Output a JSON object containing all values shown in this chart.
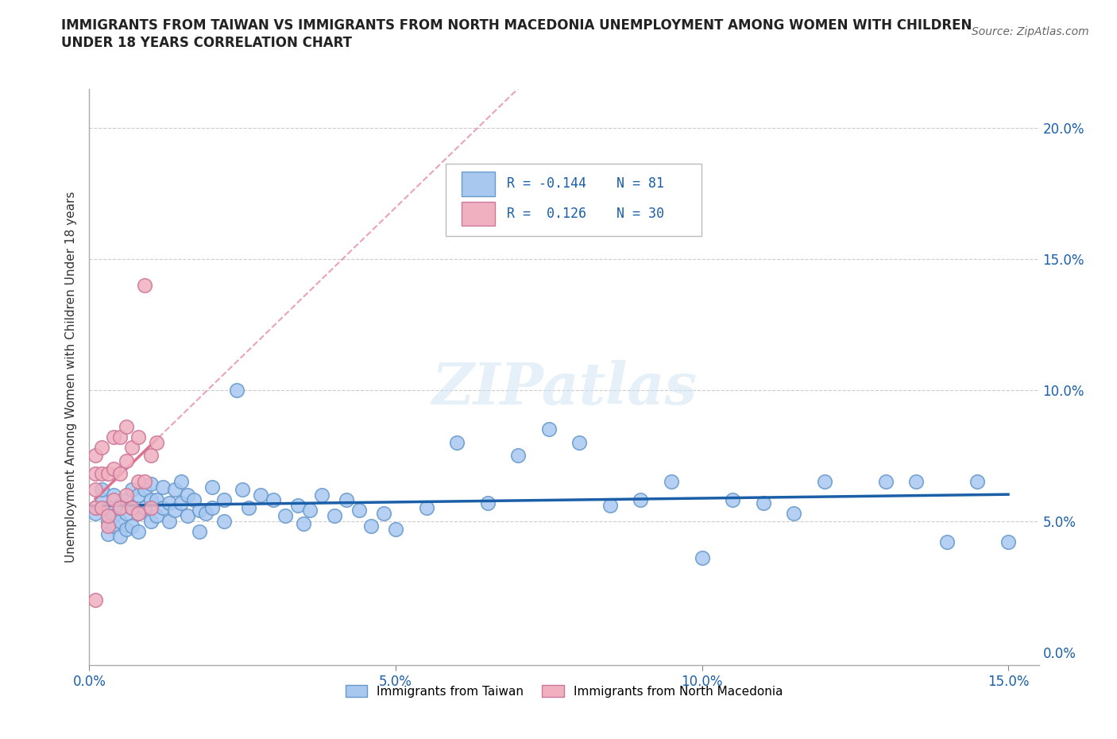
{
  "title_line1": "IMMIGRANTS FROM TAIWAN VS IMMIGRANTS FROM NORTH MACEDONIA UNEMPLOYMENT AMONG WOMEN WITH CHILDREN",
  "title_line2": "UNDER 18 YEARS CORRELATION CHART",
  "source": "Source: ZipAtlas.com",
  "ylabel": "Unemployment Among Women with Children Under 18 years",
  "xlim": [
    0.0,
    0.155
  ],
  "ylim": [
    -0.005,
    0.215
  ],
  "xticks": [
    0.0,
    0.05,
    0.1,
    0.15
  ],
  "xtick_labels": [
    "0.0%",
    "5.0%",
    "10.0%",
    "15.0%"
  ],
  "yticks": [
    0.0,
    0.05,
    0.1,
    0.15,
    0.2
  ],
  "ytick_labels": [
    "0.0%",
    "5.0%",
    "10.0%",
    "15.0%",
    "20.0%"
  ],
  "grid_color": "#cccccc",
  "taiwan_color": "#a8c8f0",
  "taiwan_edge_color": "#6699cc",
  "macedonia_color": "#f0b0c0",
  "macedonia_edge_color": "#cc7799",
  "taiwan_R": -0.144,
  "taiwan_N": 81,
  "macedonia_R": 0.126,
  "macedonia_N": 30,
  "taiwan_line_color": "#1a5fa8",
  "macedonia_line_color": "#e07090",
  "watermark": "ZIPatlas",
  "legend_taiwan": "Immigrants from Taiwan",
  "legend_macedonia": "Immigrants from North Macedonia",
  "taiwan_x": [
    0.001,
    0.002,
    0.002,
    0.003,
    0.003,
    0.003,
    0.004,
    0.004,
    0.004,
    0.005,
    0.005,
    0.005,
    0.006,
    0.006,
    0.006,
    0.007,
    0.007,
    0.007,
    0.008,
    0.008,
    0.008,
    0.009,
    0.009,
    0.01,
    0.01,
    0.01,
    0.011,
    0.011,
    0.012,
    0.012,
    0.013,
    0.013,
    0.014,
    0.014,
    0.015,
    0.015,
    0.016,
    0.016,
    0.017,
    0.018,
    0.018,
    0.019,
    0.02,
    0.02,
    0.022,
    0.022,
    0.024,
    0.025,
    0.026,
    0.028,
    0.03,
    0.032,
    0.034,
    0.035,
    0.036,
    0.038,
    0.04,
    0.042,
    0.044,
    0.046,
    0.048,
    0.05,
    0.055,
    0.06,
    0.065,
    0.07,
    0.075,
    0.08,
    0.085,
    0.09,
    0.095,
    0.1,
    0.105,
    0.11,
    0.115,
    0.12,
    0.13,
    0.135,
    0.14,
    0.145,
    0.15
  ],
  "taiwan_y": [
    0.053,
    0.058,
    0.062,
    0.055,
    0.05,
    0.045,
    0.06,
    0.052,
    0.048,
    0.056,
    0.05,
    0.044,
    0.058,
    0.053,
    0.047,
    0.062,
    0.055,
    0.048,
    0.06,
    0.053,
    0.046,
    0.062,
    0.055,
    0.064,
    0.058,
    0.05,
    0.058,
    0.052,
    0.063,
    0.055,
    0.057,
    0.05,
    0.062,
    0.054,
    0.065,
    0.057,
    0.06,
    0.052,
    0.058,
    0.054,
    0.046,
    0.053,
    0.063,
    0.055,
    0.058,
    0.05,
    0.1,
    0.062,
    0.055,
    0.06,
    0.058,
    0.052,
    0.056,
    0.049,
    0.054,
    0.06,
    0.052,
    0.058,
    0.054,
    0.048,
    0.053,
    0.047,
    0.055,
    0.08,
    0.057,
    0.075,
    0.085,
    0.08,
    0.056,
    0.058,
    0.065,
    0.036,
    0.058,
    0.057,
    0.053,
    0.065,
    0.065,
    0.065,
    0.042,
    0.065,
    0.042
  ],
  "macedonia_x": [
    0.001,
    0.001,
    0.001,
    0.001,
    0.001,
    0.002,
    0.002,
    0.002,
    0.003,
    0.003,
    0.003,
    0.004,
    0.004,
    0.004,
    0.005,
    0.005,
    0.005,
    0.006,
    0.006,
    0.006,
    0.007,
    0.007,
    0.008,
    0.008,
    0.008,
    0.009,
    0.009,
    0.01,
    0.01,
    0.011
  ],
  "macedonia_y": [
    0.075,
    0.068,
    0.062,
    0.055,
    0.02,
    0.078,
    0.068,
    0.055,
    0.068,
    0.048,
    0.052,
    0.082,
    0.07,
    0.058,
    0.082,
    0.068,
    0.055,
    0.086,
    0.073,
    0.06,
    0.078,
    0.055,
    0.082,
    0.065,
    0.053,
    0.14,
    0.065,
    0.075,
    0.055,
    0.08
  ]
}
